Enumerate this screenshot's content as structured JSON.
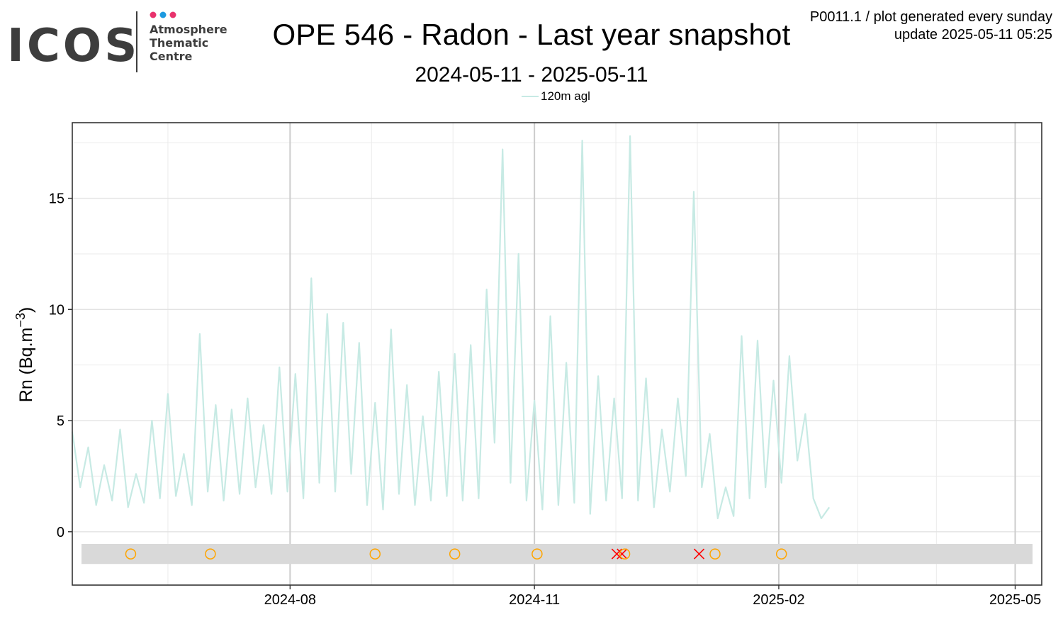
{
  "logo": {
    "brand": "ICOS",
    "line1": "Atmosphere",
    "line2": "Thematic",
    "line3": "Centre",
    "dot_colors": [
      "#e8336d",
      "#1e9ae0",
      "#e8336d"
    ]
  },
  "title": "OPE 546 - Radon - Last year snapshot",
  "subtitle": "2024-05-11 - 2025-05-11",
  "meta": {
    "line1": "P0011.1 / plot generated every sunday",
    "line2": "update  2025-05-11 05:25"
  },
  "colors": {
    "series": "#c7eae4",
    "flag_circle": "#ffa500",
    "flag_cross": "#ff0000",
    "flag_band": "#d9d9d9",
    "grid_major": "#cccccc",
    "grid_minor": "#ebebeb"
  },
  "chart_data": {
    "type": "line",
    "ylabel": "Rn (Bq.m",
    "ylabel_exp": "−3",
    "ylabel_close": ")",
    "xlim": [
      "2024-05-11",
      "2025-05-11"
    ],
    "ylim": [
      -2.4,
      18.4
    ],
    "x_ticks": [
      "2024-08-01",
      "2024-11-01",
      "2025-02-01",
      "2025-05-01"
    ],
    "x_tick_labels": [
      "2024-08",
      "2024-11",
      "2025-02",
      "2025-05"
    ],
    "y_ticks": [
      0,
      5,
      10,
      15
    ],
    "y_tick_labels": [
      "0",
      "5",
      "10",
      "15"
    ],
    "grid": true,
    "legend": {
      "position": "top",
      "label": "120m agl"
    },
    "series": [
      {
        "name": "120m agl",
        "x": [
          "2024-05-11",
          "2024-05-14",
          "2024-05-17",
          "2024-05-20",
          "2024-05-23",
          "2024-05-26",
          "2024-05-29",
          "2024-06-01",
          "2024-06-04",
          "2024-06-07",
          "2024-06-10",
          "2024-06-13",
          "2024-06-16",
          "2024-06-19",
          "2024-06-22",
          "2024-06-25",
          "2024-06-28",
          "2024-07-01",
          "2024-07-04",
          "2024-07-07",
          "2024-07-10",
          "2024-07-13",
          "2024-07-16",
          "2024-07-19",
          "2024-07-22",
          "2024-07-25",
          "2024-07-28",
          "2024-07-31",
          "2024-08-03",
          "2024-08-06",
          "2024-08-09",
          "2024-08-12",
          "2024-08-15",
          "2024-08-18",
          "2024-08-21",
          "2024-08-24",
          "2024-08-27",
          "2024-08-30",
          "2024-09-02",
          "2024-09-05",
          "2024-09-08",
          "2024-09-11",
          "2024-09-14",
          "2024-09-17",
          "2024-09-20",
          "2024-09-23",
          "2024-09-26",
          "2024-09-29",
          "2024-10-02",
          "2024-10-05",
          "2024-10-08",
          "2024-10-11",
          "2024-10-14",
          "2024-10-17",
          "2024-10-20",
          "2024-10-23",
          "2024-10-26",
          "2024-10-29",
          "2024-11-01",
          "2024-11-04",
          "2024-11-07",
          "2024-11-10",
          "2024-11-13",
          "2024-11-16",
          "2024-11-19",
          "2024-11-22",
          "2024-11-25",
          "2024-11-28",
          "2024-12-01",
          "2024-12-04",
          "2024-12-07",
          "2024-12-10",
          "2024-12-13",
          "2024-12-16",
          "2024-12-19",
          "2024-12-22",
          "2024-12-25",
          "2024-12-28",
          "2024-12-31",
          "2025-01-03",
          "2025-01-06",
          "2025-01-09",
          "2025-01-12",
          "2025-01-15",
          "2025-01-18",
          "2025-01-21",
          "2025-01-24",
          "2025-01-27",
          "2025-01-30",
          "2025-02-02",
          "2025-02-05",
          "2025-02-08",
          "2025-02-11",
          "2025-02-14",
          "2025-02-17",
          "2025-02-20",
          "2025-02-23",
          "2025-02-26",
          "2025-03-01",
          "2025-03-04",
          "2025-03-07",
          "2025-03-10"
        ],
        "values": [
          4.5,
          2.0,
          3.8,
          1.2,
          3.0,
          1.4,
          4.6,
          1.1,
          2.6,
          1.3,
          5.0,
          1.5,
          6.2,
          1.6,
          3.5,
          1.2,
          8.9,
          1.8,
          5.7,
          1.4,
          5.5,
          1.7,
          6.0,
          2.0,
          4.8,
          1.7,
          7.4,
          1.8,
          7.1,
          1.5,
          11.4,
          2.2,
          9.8,
          1.8,
          9.4,
          2.6,
          8.5,
          1.2,
          5.8,
          1.0,
          9.1,
          1.7,
          6.6,
          1.2,
          5.2,
          1.4,
          7.2,
          1.6,
          8.0,
          1.4,
          8.4,
          1.5,
          10.9,
          4.0,
          17.2,
          2.2,
          12.5,
          1.4,
          5.9,
          1.0,
          9.7,
          1.2,
          7.6,
          1.3,
          17.6,
          0.8,
          7.0,
          1.4,
          6.0,
          1.5,
          17.8,
          1.4,
          6.9,
          1.1,
          4.6,
          1.8,
          6.0,
          2.5,
          15.3,
          2.0,
          4.4,
          0.6,
          2.0,
          0.7,
          8.8,
          1.5,
          8.6,
          2.0,
          6.8,
          2.2,
          7.9,
          3.2,
          5.3,
          1.5,
          0.6,
          1.1,
          null,
          null,
          null,
          null,
          null,
          null
        ]
      }
    ],
    "flags": [
      {
        "date": "2024-06-02",
        "y": -1.0,
        "marker": "circle"
      },
      {
        "date": "2024-07-02",
        "y": -1.0,
        "marker": "circle"
      },
      {
        "date": "2024-09-02",
        "y": -1.0,
        "marker": "circle"
      },
      {
        "date": "2024-10-02",
        "y": -1.0,
        "marker": "circle"
      },
      {
        "date": "2024-11-02",
        "y": -1.0,
        "marker": "circle"
      },
      {
        "date": "2024-12-02",
        "y": -1.0,
        "marker": "cross"
      },
      {
        "date": "2024-12-04",
        "y": -1.0,
        "marker": "cross"
      },
      {
        "date": "2024-12-05",
        "y": -1.0,
        "marker": "circle"
      },
      {
        "date": "2025-01-02",
        "y": -1.0,
        "marker": "cross"
      },
      {
        "date": "2025-01-08",
        "y": -1.0,
        "marker": "circle"
      },
      {
        "date": "2025-02-02",
        "y": -1.0,
        "marker": "circle"
      }
    ],
    "flag_band": [
      -1.45,
      -0.55
    ]
  }
}
